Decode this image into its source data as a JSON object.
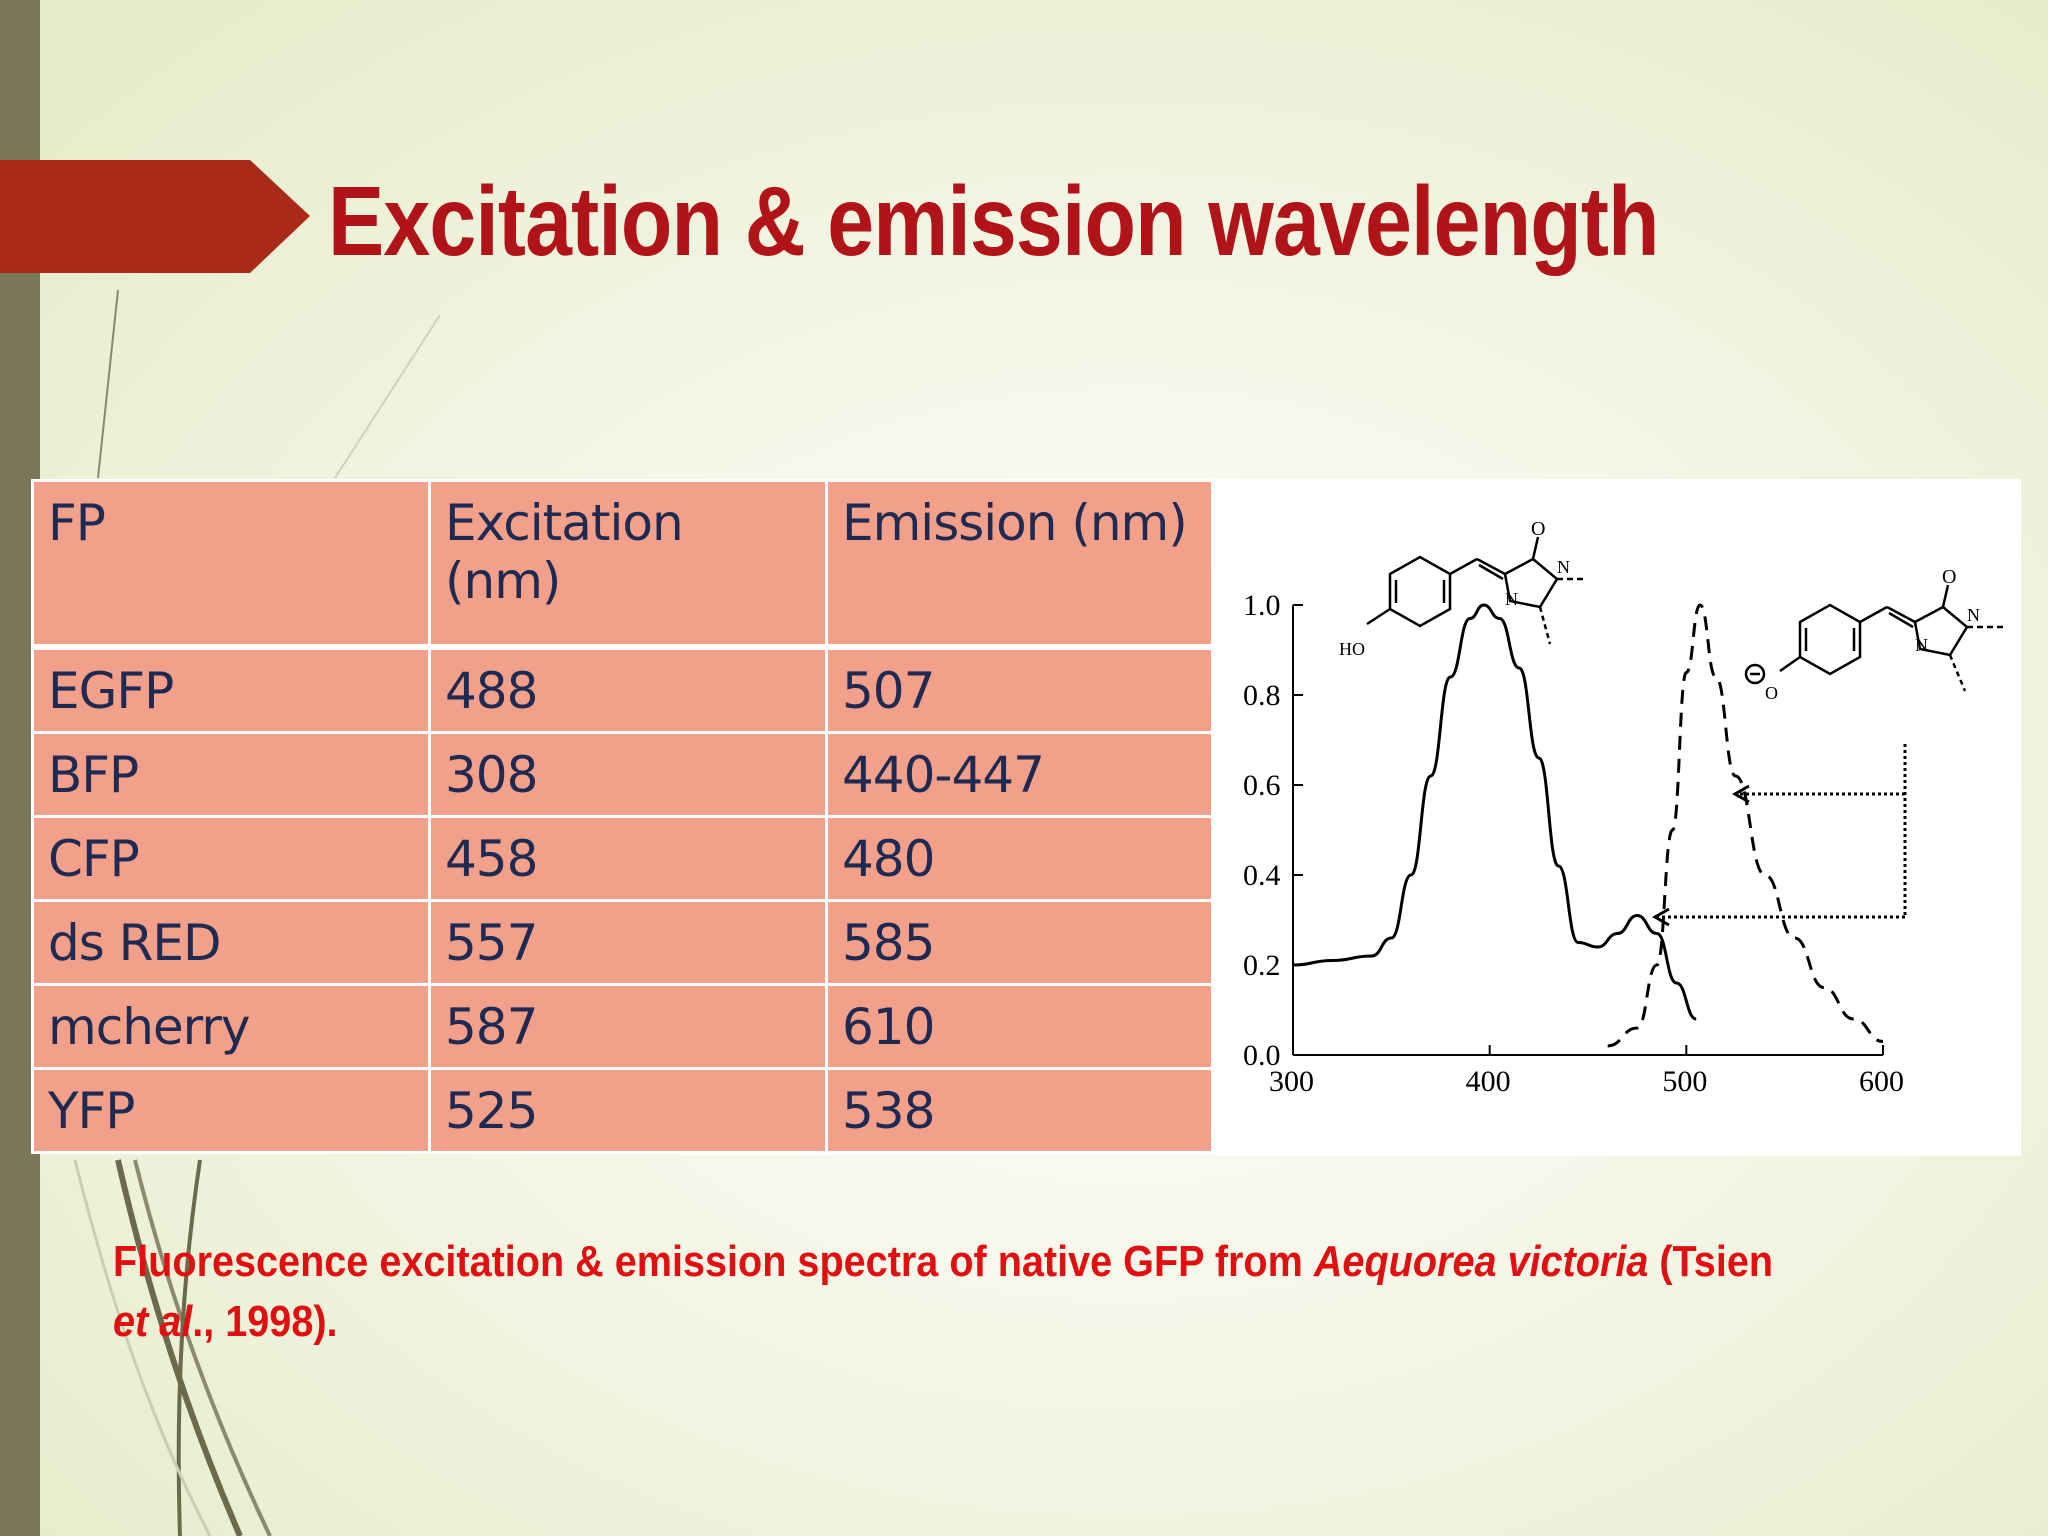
{
  "slide": {
    "title": "Excitation & emission wavelength",
    "accent_color": "#b01318",
    "arrow_color": "#a92a16"
  },
  "table": {
    "headers": [
      "FP",
      "Excitation (nm)",
      "Emission (nm)"
    ],
    "rows": [
      [
        "EGFP",
        "488",
        "507"
      ],
      [
        "BFP",
        "308",
        "440-447"
      ],
      [
        "CFP",
        "458",
        "480"
      ],
      [
        "ds RED",
        "557",
        "585"
      ],
      [
        "mcherry",
        "587",
        "610"
      ],
      [
        "YFP",
        "525",
        "538"
      ]
    ]
  },
  "figure": {
    "y_ticks": [
      "1.0",
      "0.8",
      "0.6",
      "0.4",
      "0.2",
      "0.0"
    ],
    "x_ticks": [
      "300",
      "400",
      "500",
      "600"
    ],
    "mol_labels": {
      "ho": "HO",
      "n1": "N",
      "n1b": "N",
      "o1": "O",
      "o2": "O",
      "n2": "N",
      "n2b": "N",
      "ominus": "O"
    },
    "xlim": [
      300,
      600
    ],
    "ylim": [
      0,
      1.0
    ],
    "excitation": [
      [
        300,
        0.2
      ],
      [
        320,
        0.21
      ],
      [
        340,
        0.22
      ],
      [
        350,
        0.26
      ],
      [
        360,
        0.4
      ],
      [
        370,
        0.62
      ],
      [
        380,
        0.84
      ],
      [
        390,
        0.97
      ],
      [
        397,
        1.0
      ],
      [
        405,
        0.97
      ],
      [
        415,
        0.86
      ],
      [
        425,
        0.66
      ],
      [
        435,
        0.42
      ],
      [
        445,
        0.25
      ],
      [
        455,
        0.24
      ],
      [
        465,
        0.27
      ],
      [
        475,
        0.31
      ],
      [
        485,
        0.27
      ],
      [
        495,
        0.16
      ],
      [
        505,
        0.08
      ]
    ],
    "emission": [
      [
        460,
        0.02
      ],
      [
        475,
        0.06
      ],
      [
        485,
        0.2
      ],
      [
        493,
        0.5
      ],
      [
        500,
        0.85
      ],
      [
        507,
        1.0
      ],
      [
        515,
        0.84
      ],
      [
        525,
        0.62
      ],
      [
        540,
        0.4
      ],
      [
        555,
        0.26
      ],
      [
        570,
        0.15
      ],
      [
        585,
        0.08
      ],
      [
        600,
        0.03
      ]
    ]
  },
  "caption": {
    "part1": "Fluorescence excitation & emission spectra of native GFP from ",
    "italic1": "Aequorea victoria",
    "part2": " (Tsien ",
    "italic2": "et al",
    "part3": "., 1998)."
  }
}
